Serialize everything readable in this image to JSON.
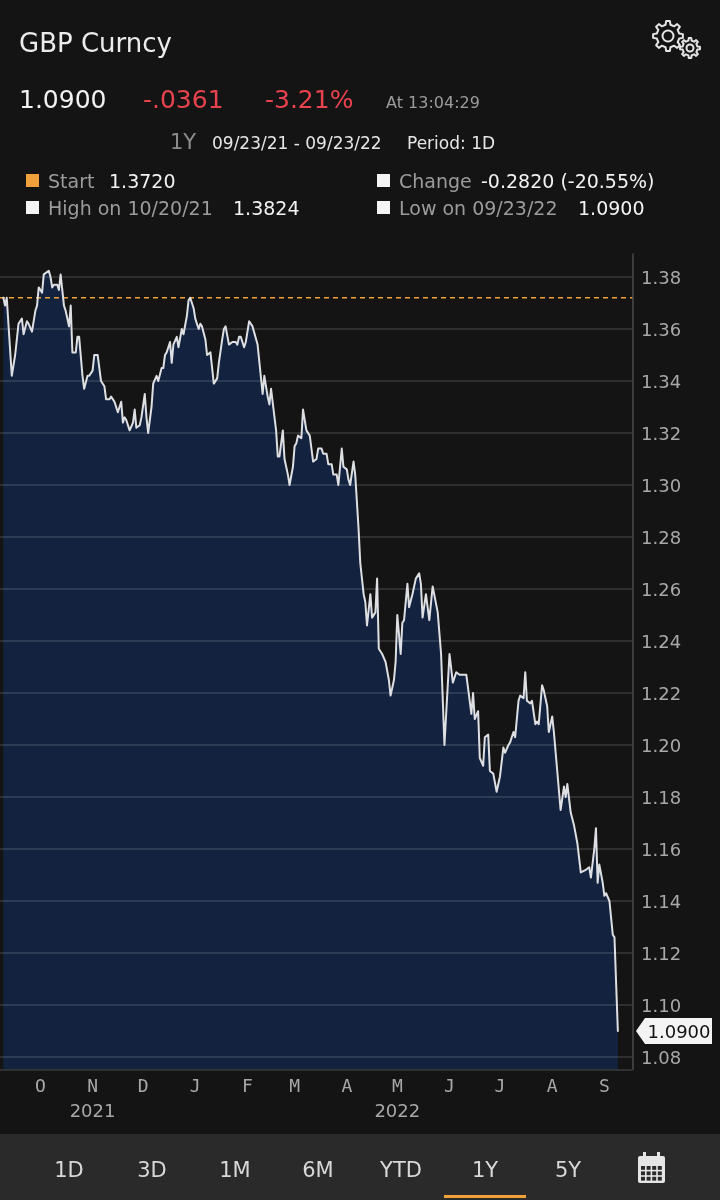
{
  "chart_data": {
    "type": "area",
    "title": "GBP Curncy",
    "annotations": [
      "1.0900",
      "-.0361",
      "-3.21%",
      "At 13:04:29",
      "1Y",
      "09/23/21 - 09/23/22",
      "Period: 1D",
      "Start",
      "1.3720",
      "Change",
      "-0.2820 (-20.55%)",
      "High on 10/20/21",
      "1.3824",
      "Low on 09/23/22",
      "1.0900",
      {
        "text": "1.0900",
        "x": "2022-09-23",
        "y": 1.09
      },
      "1D",
      "3D",
      "1M",
      "6M",
      "YTD",
      "1Y",
      "5Y"
    ],
    "x": [
      "2021-09-23",
      "2021-09-24",
      "2021-09-25",
      "2021-09-28",
      "2021-09-30",
      "2021-10-02",
      "2021-10-04",
      "2021-10-05",
      "2021-10-07",
      "2021-10-08",
      "2021-10-10",
      "2021-10-12",
      "2021-10-13",
      "2021-10-14",
      "2021-10-16",
      "2021-10-17",
      "2021-10-20",
      "2021-10-21",
      "2021-10-22",
      "2021-10-23",
      "2021-10-25",
      "2021-10-26",
      "2021-10-27",
      "2021-10-29",
      "2021-10-30",
      "2021-11-01",
      "2021-11-02",
      "2021-11-03",
      "2021-11-05",
      "2021-11-06",
      "2021-11-07",
      "2021-11-09",
      "2021-11-10",
      "2021-11-12",
      "2021-11-13",
      "2021-11-15",
      "2021-11-16",
      "2021-11-18",
      "2021-11-20",
      "2021-11-22",
      "2021-11-23",
      "2021-11-25",
      "2021-11-26",
      "2021-11-28",
      "2021-11-30",
      "2021-12-02",
      "2021-12-03",
      "2021-12-04",
      "2021-12-05",
      "2021-12-07",
      "2021-12-09",
      "2021-12-10",
      "2021-12-11",
      "2021-12-13",
      "2021-12-14",
      "2021-12-16",
      "2021-12-17",
      "2021-12-18",
      "2021-12-20",
      "2021-12-21",
      "2021-12-23",
      "2021-12-24",
      "2021-12-26",
      "2021-12-27",
      "2021-12-28",
      "2021-12-29",
      "2021-12-31",
      "2022-01-01",
      "2022-01-02",
      "2022-01-04",
      "2022-01-05",
      "2022-01-07",
      "2022-01-08",
      "2022-01-10",
      "2022-01-11",
      "2022-01-12",
      "2022-01-14",
      "2022-01-15",
      "2022-01-17",
      "2022-01-18",
      "2022-01-19",
      "2022-01-21",
      "2022-01-22",
      "2022-01-24",
      "2022-01-26",
      "2022-01-28",
      "2022-01-29",
      "2022-01-31",
      "2022-02-01",
      "2022-02-02",
      "2022-02-04",
      "2022-02-06",
      "2022-02-08",
      "2022-02-09",
      "2022-02-10",
      "2022-02-11",
      "2022-02-13",
      "2022-02-14",
      "2022-02-16",
      "2022-02-18",
      "2022-02-21",
      "2022-02-24",
      "2022-02-25",
      "2022-02-27",
      "2022-02-28",
      "2022-03-01",
      "2022-03-04",
      "2022-03-05",
      "2022-03-06",
      "2022-03-08",
      "2022-03-09",
      "2022-03-11",
      "2022-03-12",
      "2022-03-14",
      "2022-03-15",
      "2022-03-16",
      "2022-03-17",
      "2022-03-19",
      "2022-03-20",
      "2022-03-22",
      "2022-03-24",
      "2022-03-26",
      "2022-03-28",
      "2022-03-29",
      "2022-03-31",
      "2022-04-01",
      "2022-04-03",
      "2022-04-04",
      "2022-04-06",
      "2022-04-07",
      "2022-04-09",
      "2022-04-10",
      "2022-04-12",
      "2022-04-13",
      "2022-04-15",
      "2022-04-16",
      "2022-04-17",
      "2022-04-19",
      "2022-04-20",
      "2022-04-22",
      "2022-04-23",
      "2022-04-25",
      "2022-04-26",
      "2022-04-27",
      "2022-04-29",
      "2022-04-30",
      "2022-05-02",
      "2022-05-03",
      "2022-05-04",
      "2022-05-06",
      "2022-05-08",
      "2022-05-10",
      "2022-05-11",
      "2022-05-13",
      "2022-05-14",
      "2022-05-15",
      "2022-05-17",
      "2022-05-18",
      "2022-05-19",
      "2022-05-21",
      "2022-05-22",
      "2022-05-24",
      "2022-05-26",
      "2022-05-28",
      "2022-05-29",
      "2022-05-30",
      "2022-06-01",
      "2022-06-03",
      "2022-06-05",
      "2022-06-08",
      "2022-06-10",
      "2022-06-12",
      "2022-06-15",
      "2022-06-17",
      "2022-06-19",
      "2022-06-21",
      "2022-06-25",
      "2022-06-27",
      "2022-06-28",
      "2022-06-29",
      "2022-06-30",
      "2022-07-02",
      "2022-07-03",
      "2022-07-05",
      "2022-07-06",
      "2022-07-08",
      "2022-07-09",
      "2022-07-11",
      "2022-07-13",
      "2022-07-15",
      "2022-07-17",
      "2022-07-18",
      "2022-07-20",
      "2022-07-21",
      "2022-07-23",
      "2022-07-24",
      "2022-07-26",
      "2022-07-27",
      "2022-07-29",
      "2022-07-30",
      "2022-07-31",
      "2022-08-02",
      "2022-08-03",
      "2022-08-05",
      "2022-08-06",
      "2022-08-07",
      "2022-08-09",
      "2022-08-10",
      "2022-08-12",
      "2022-08-13",
      "2022-08-15",
      "2022-08-16",
      "2022-08-18",
      "2022-08-20",
      "2022-08-22",
      "2022-08-23",
      "2022-08-24",
      "2022-08-26",
      "2022-08-28",
      "2022-08-30",
      "2022-09-01",
      "2022-09-04",
      "2022-09-06",
      "2022-09-07",
      "2022-09-09",
      "2022-09-10",
      "2022-09-11",
      "2022-09-12",
      "2022-09-14",
      "2022-09-15",
      "2022-09-16",
      "2022-09-18",
      "2022-09-20",
      "2022-09-21",
      "2022-09-23"
    ],
    "values": [
      1.372,
      1.369,
      1.372,
      1.342,
      1.35,
      1.362,
      1.364,
      1.358,
      1.363,
      1.362,
      1.359,
      1.367,
      1.369,
      1.376,
      1.374,
      1.381,
      1.3824,
      1.38,
      1.376,
      1.377,
      1.377,
      1.375,
      1.381,
      1.369,
      1.367,
      1.361,
      1.369,
      1.351,
      1.351,
      1.357,
      1.357,
      1.342,
      1.337,
      1.342,
      1.342,
      1.344,
      1.35,
      1.35,
      1.34,
      1.338,
      1.333,
      1.333,
      1.334,
      1.332,
      1.328,
      1.332,
      1.324,
      1.326,
      1.325,
      1.321,
      1.324,
      1.329,
      1.322,
      1.323,
      1.326,
      1.335,
      1.326,
      1.32,
      1.33,
      1.339,
      1.342,
      1.34,
      1.345,
      1.345,
      1.35,
      1.351,
      1.355,
      1.347,
      1.354,
      1.357,
      1.353,
      1.36,
      1.358,
      1.365,
      1.371,
      1.372,
      1.368,
      1.364,
      1.36,
      1.362,
      1.361,
      1.356,
      1.35,
      1.351,
      1.339,
      1.341,
      1.347,
      1.356,
      1.36,
      1.361,
      1.354,
      1.355,
      1.355,
      1.354,
      1.357,
      1.357,
      1.353,
      1.355,
      1.363,
      1.361,
      1.354,
      1.335,
      1.342,
      1.334,
      1.331,
      1.337,
      1.321,
      1.311,
      1.311,
      1.321,
      1.31,
      1.304,
      1.3,
      1.307,
      1.315,
      1.316,
      1.319,
      1.318,
      1.329,
      1.321,
      1.319,
      1.309,
      1.31,
      1.314,
      1.314,
      1.312,
      1.312,
      1.308,
      1.308,
      1.304,
      1.304,
      1.3,
      1.314,
      1.307,
      1.306,
      1.302,
      1.3,
      1.309,
      1.304,
      1.283,
      1.27,
      1.258,
      1.255,
      1.246,
      1.258,
      1.249,
      1.251,
      1.264,
      1.237,
      1.235,
      1.232,
      1.225,
      1.219,
      1.225,
      1.232,
      1.25,
      1.235,
      1.247,
      1.248,
      1.262,
      1.253,
      1.258,
      1.264,
      1.266,
      1.262,
      1.249,
      1.258,
      1.248,
      1.261,
      1.251,
      1.235,
      1.2,
      1.235,
      1.224,
      1.228,
      1.227,
      1.227,
      1.217,
      1.212,
      1.22,
      1.21,
      1.213,
      1.195,
      1.192,
      1.203,
      1.204,
      1.19,
      1.189,
      1.182,
      1.188,
      1.199,
      1.197,
      1.2,
      1.201,
      1.205,
      1.203,
      1.217,
      1.219,
      1.218,
      1.228,
      1.217,
      1.216,
      1.217,
      1.208,
      1.209,
      1.208,
      1.223,
      1.221,
      1.215,
      1.205,
      1.211,
      1.205,
      1.19,
      1.175,
      1.184,
      1.18,
      1.185,
      1.174,
      1.169,
      1.162,
      1.151,
      1.152,
      1.153,
      1.149,
      1.16,
      1.168,
      1.147,
      1.154,
      1.147,
      1.142,
      1.143,
      1.14,
      1.127,
      1.126,
      1.09
    ],
    "color": "#12223f",
    "xlim": [
      "2021-09-21",
      "2022-10-02"
    ],
    "xticks": [
      {
        "value": "2021-10-15",
        "label": "O"
      },
      {
        "value": "2021-11-15",
        "label": "N\n2021"
      },
      {
        "value": "2021-12-15",
        "label": "D"
      },
      {
        "value": "2022-01-15",
        "label": "J"
      },
      {
        "value": "2022-02-15",
        "label": "F"
      },
      {
        "value": "2022-03-15",
        "label": "M"
      },
      {
        "value": "2022-04-15",
        "label": "A"
      },
      {
        "value": "2022-05-15",
        "label": "M\n2022"
      },
      {
        "value": "2022-06-15",
        "label": "J"
      },
      {
        "value": "2022-07-15",
        "label": "J"
      },
      {
        "value": "2022-08-15",
        "label": "A"
      },
      {
        "value": "2022-09-15",
        "label": "S"
      }
    ],
    "ylim": [
      1.075,
      1.389
    ],
    "yticks": [
      1.08,
      {
        "value": 1.1,
        "label": "1.10"
      },
      1.12,
      1.14,
      1.16,
      1.18,
      {
        "value": 1.2,
        "label": "1.20"
      },
      1.22,
      1.24,
      1.26,
      1.28,
      {
        "value": 1.3,
        "label": "1.30"
      },
      1.32,
      1.34,
      1.36,
      1.38
    ],
    "grid": "y",
    "ref_lines": [
      {
        "axis": "y",
        "value": 1.372,
        "color": "#f0a13c",
        "line_style": "dashed"
      }
    ]
  }
}
